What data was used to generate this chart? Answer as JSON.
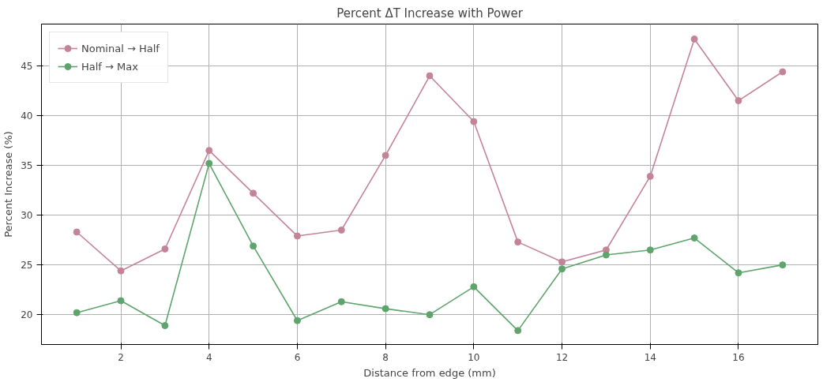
{
  "chart_data": {
    "type": "line",
    "title": "Percent ΔT Increase with Power",
    "xlabel": "Distance from edge (mm)",
    "ylabel": "Percent Increase (%)",
    "x": [
      1,
      2,
      3,
      4,
      5,
      6,
      7,
      8,
      9,
      10,
      11,
      12,
      13,
      14,
      15,
      16,
      17
    ],
    "series": [
      {
        "name": "Nominal → Half",
        "color": "#c48497",
        "values": [
          28.3,
          24.4,
          26.6,
          36.5,
          32.2,
          27.9,
          28.5,
          36.0,
          44.0,
          39.4,
          27.3,
          25.3,
          26.5,
          33.9,
          47.7,
          41.5,
          44.4
        ]
      },
      {
        "name": "Half → Max",
        "color": "#5fa46c",
        "values": [
          20.2,
          21.4,
          18.9,
          35.2,
          26.9,
          19.4,
          21.3,
          20.6,
          20.0,
          22.8,
          18.4,
          24.6,
          26.0,
          26.5,
          27.7,
          24.2,
          25.0
        ]
      }
    ],
    "xlim": [
      0.2,
      17.8
    ],
    "ylim": [
      17.0,
      49.2
    ],
    "xticks": [
      2,
      4,
      6,
      8,
      10,
      12,
      14,
      16
    ],
    "yticks": [
      20,
      25,
      30,
      35,
      40,
      45
    ],
    "grid": true,
    "legend": "top left",
    "marker": "circle",
    "line_style": "solid"
  }
}
